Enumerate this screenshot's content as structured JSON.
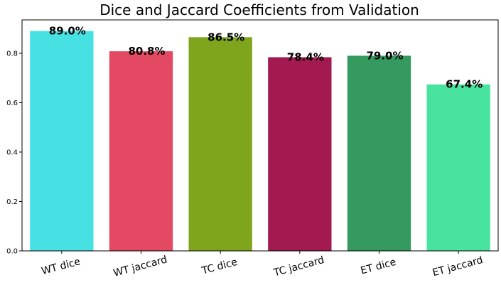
{
  "chart_data": {
    "type": "bar",
    "title": "Dice and Jaccard Coefficients from Validation",
    "categories": [
      "WT dice",
      "WT jaccard",
      "TC dice",
      "TC jaccard",
      "ET dice",
      "ET jaccard"
    ],
    "values": [
      0.89,
      0.808,
      0.865,
      0.784,
      0.79,
      0.674
    ],
    "data_labels": [
      "89.0%",
      "80.8%",
      "86.5%",
      "78.4%",
      "79.0%",
      "67.4%"
    ],
    "colors": [
      "#48e1e3",
      "#e44963",
      "#7fa51d",
      "#a31a51",
      "#349a5f",
      "#48e39e"
    ],
    "yticks": [
      "0.0",
      "0.2",
      "0.4",
      "0.6",
      "0.8"
    ],
    "ytick_values": [
      0.0,
      0.2,
      0.4,
      0.6,
      0.8
    ],
    "ylim": [
      0,
      0.935
    ],
    "xlabel": "",
    "ylabel": "",
    "grid": false,
    "legend": "none"
  }
}
